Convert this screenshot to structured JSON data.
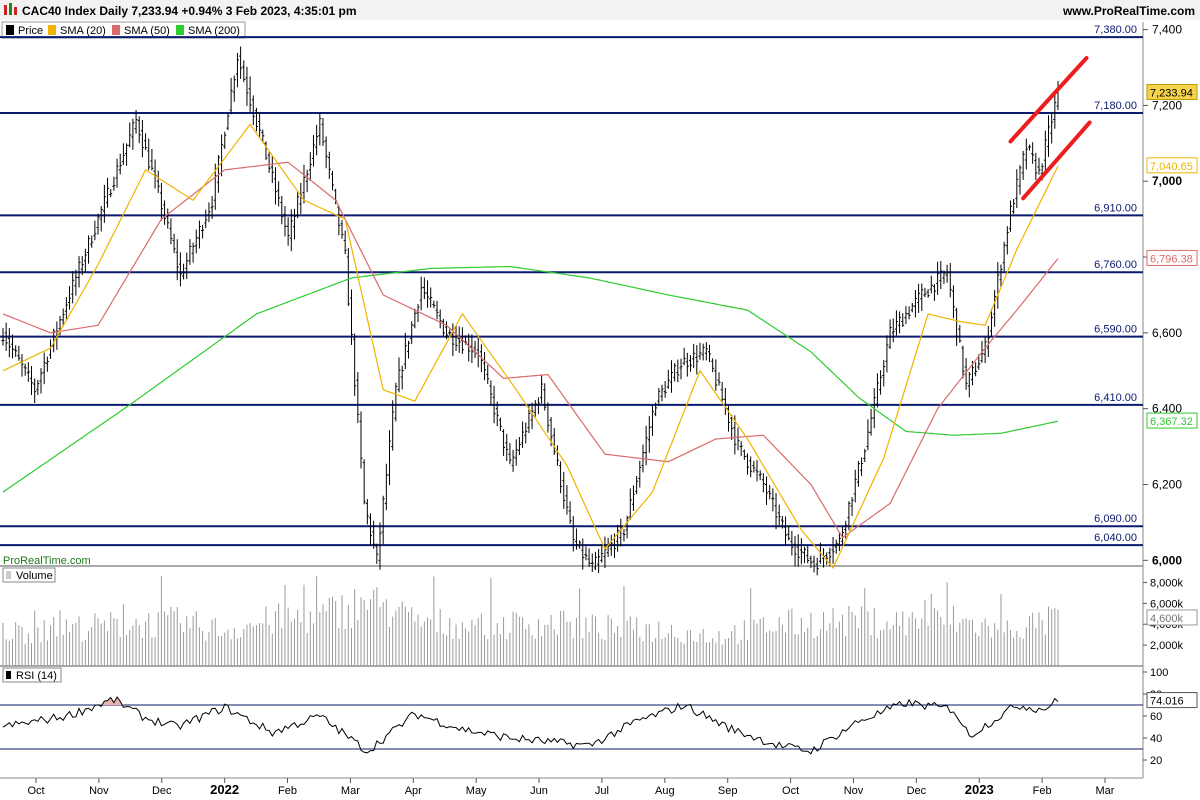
{
  "header": {
    "title": "CAC40 Index Daily 7,233.94 +0.94% 3 Feb 2023, 4:35:01 pm",
    "site": "www.ProRealTime.com"
  },
  "watermark": "ProRealTime.com",
  "legend": [
    {
      "label": "Price",
      "color": "#000000"
    },
    {
      "label": "SMA (20)",
      "color": "#f0b400"
    },
    {
      "label": "SMA (50)",
      "color": "#d96b6b"
    },
    {
      "label": "SMA (200)",
      "color": "#2ecc2e"
    }
  ],
  "volume_label": "Volume",
  "rsi_label": "RSI (14)",
  "colors": {
    "sma20": "#f0b400",
    "sma50": "#d96b6b",
    "sma200": "#2ecc2e",
    "levels": "#0a1a6e",
    "trend": "#ee1c1c",
    "volume": "#9a9a9a"
  },
  "chart_data": {
    "type": "line",
    "price_axis": {
      "ticks": [
        6000,
        6200,
        6400,
        6600,
        6800,
        7000,
        7200,
        7400
      ],
      "labels": [
        "6,000",
        "6,200",
        "6,400",
        "6,600",
        "6,800",
        "7,000",
        "7,200",
        "7,400"
      ],
      "ylim": [
        5985,
        7420
      ]
    },
    "last_price": "7,233.94",
    "sma_values": [
      {
        "name": "SMA (20)",
        "value": "7,040.65"
      },
      {
        "name": "SMA (50)",
        "value": "6,796.38"
      },
      {
        "name": "SMA (200)",
        "value": "6,367.32"
      }
    ],
    "levels": [
      7380,
      7180,
      6910,
      6760,
      6590,
      6410,
      6090,
      6040
    ],
    "level_labels": [
      "7,380.00",
      "7,180.00",
      "6,910.00",
      "6,760.00",
      "6,590.00",
      "6,410.00",
      "6,090.00",
      "6,040.00"
    ],
    "x_axis": [
      "Oct",
      "Nov",
      "Dec",
      "2022",
      "Feb",
      "Mar",
      "Apr",
      "May",
      "Jun",
      "Jul",
      "Aug",
      "Sep",
      "Oct",
      "Nov",
      "Dec",
      "2023",
      "Feb",
      "Mar"
    ],
    "volume_axis": {
      "ticks": [
        2000,
        4000,
        6000,
        8000
      ],
      "labels": [
        "2,000k",
        "4,000k",
        "6,000k",
        "8,000k"
      ],
      "last": "4,600k"
    },
    "rsi_axis": {
      "ticks": [
        20,
        40,
        60,
        80,
        100
      ],
      "labels": [
        "20",
        "40",
        "60",
        "80",
        "100"
      ],
      "last": "74.016",
      "bands": [
        70,
        30
      ]
    },
    "sma200_keypoints": [
      {
        "i": 0,
        "v": 6180
      },
      {
        "i": 40,
        "v": 6410
      },
      {
        "i": 80,
        "v": 6650
      },
      {
        "i": 110,
        "v": 6745
      },
      {
        "i": 135,
        "v": 6770
      },
      {
        "i": 160,
        "v": 6775
      },
      {
        "i": 185,
        "v": 6745
      },
      {
        "i": 210,
        "v": 6700
      },
      {
        "i": 235,
        "v": 6660
      },
      {
        "i": 255,
        "v": 6550
      },
      {
        "i": 270,
        "v": 6430
      },
      {
        "i": 285,
        "v": 6340
      },
      {
        "i": 300,
        "v": 6330
      },
      {
        "i": 315,
        "v": 6335
      },
      {
        "i": 333,
        "v": 6367
      }
    ],
    "price_keypoints": [
      {
        "i": 0,
        "v": 6600
      },
      {
        "i": 10,
        "v": 6450
      },
      {
        "i": 20,
        "v": 6680
      },
      {
        "i": 30,
        "v": 6900
      },
      {
        "i": 42,
        "v": 7160
      },
      {
        "i": 48,
        "v": 7000
      },
      {
        "i": 56,
        "v": 6750
      },
      {
        "i": 66,
        "v": 6950
      },
      {
        "i": 74,
        "v": 7330
      },
      {
        "i": 82,
        "v": 7100
      },
      {
        "i": 90,
        "v": 6850
      },
      {
        "i": 100,
        "v": 7150
      },
      {
        "i": 108,
        "v": 6800
      },
      {
        "i": 114,
        "v": 6150
      },
      {
        "i": 118,
        "v": 6000
      },
      {
        "i": 124,
        "v": 6450
      },
      {
        "i": 132,
        "v": 6720
      },
      {
        "i": 140,
        "v": 6600
      },
      {
        "i": 150,
        "v": 6550
      },
      {
        "i": 160,
        "v": 6250
      },
      {
        "i": 170,
        "v": 6450
      },
      {
        "i": 180,
        "v": 6050
      },
      {
        "i": 186,
        "v": 5980
      },
      {
        "i": 196,
        "v": 6080
      },
      {
        "i": 206,
        "v": 6420
      },
      {
        "i": 214,
        "v": 6520
      },
      {
        "i": 222,
        "v": 6550
      },
      {
        "i": 232,
        "v": 6300
      },
      {
        "i": 240,
        "v": 6200
      },
      {
        "i": 248,
        "v": 6050
      },
      {
        "i": 256,
        "v": 5990
      },
      {
        "i": 264,
        "v": 6050
      },
      {
        "i": 272,
        "v": 6300
      },
      {
        "i": 280,
        "v": 6600
      },
      {
        "i": 290,
        "v": 6700
      },
      {
        "i": 298,
        "v": 6760
      },
      {
        "i": 304,
        "v": 6460
      },
      {
        "i": 310,
        "v": 6560
      },
      {
        "i": 318,
        "v": 6920
      },
      {
        "i": 323,
        "v": 7090
      },
      {
        "i": 327,
        "v": 7020
      },
      {
        "i": 333,
        "v": 7234
      }
    ],
    "rsi_keypoints": [
      {
        "i": 0,
        "v": 50
      },
      {
        "i": 20,
        "v": 60
      },
      {
        "i": 35,
        "v": 75
      },
      {
        "i": 45,
        "v": 58
      },
      {
        "i": 55,
        "v": 50
      },
      {
        "i": 70,
        "v": 68
      },
      {
        "i": 85,
        "v": 45
      },
      {
        "i": 100,
        "v": 60
      },
      {
        "i": 115,
        "v": 28
      },
      {
        "i": 130,
        "v": 62
      },
      {
        "i": 145,
        "v": 48
      },
      {
        "i": 160,
        "v": 40
      },
      {
        "i": 185,
        "v": 33
      },
      {
        "i": 200,
        "v": 55
      },
      {
        "i": 215,
        "v": 70
      },
      {
        "i": 230,
        "v": 48
      },
      {
        "i": 245,
        "v": 33
      },
      {
        "i": 255,
        "v": 28
      },
      {
        "i": 270,
        "v": 55
      },
      {
        "i": 285,
        "v": 72
      },
      {
        "i": 300,
        "v": 66
      },
      {
        "i": 305,
        "v": 42
      },
      {
        "i": 320,
        "v": 70
      },
      {
        "i": 328,
        "v": 66
      },
      {
        "i": 333,
        "v": 74
      }
    ],
    "sma20_keypoints": [
      {
        "i": 0,
        "v": 6500
      },
      {
        "i": 15,
        "v": 6560
      },
      {
        "i": 30,
        "v": 6780
      },
      {
        "i": 45,
        "v": 7030
      },
      {
        "i": 60,
        "v": 6950
      },
      {
        "i": 78,
        "v": 7150
      },
      {
        "i": 95,
        "v": 6950
      },
      {
        "i": 108,
        "v": 6900
      },
      {
        "i": 120,
        "v": 6450
      },
      {
        "i": 130,
        "v": 6420
      },
      {
        "i": 145,
        "v": 6650
      },
      {
        "i": 162,
        "v": 6450
      },
      {
        "i": 178,
        "v": 6250
      },
      {
        "i": 190,
        "v": 6030
      },
      {
        "i": 205,
        "v": 6180
      },
      {
        "i": 220,
        "v": 6500
      },
      {
        "i": 235,
        "v": 6320
      },
      {
        "i": 252,
        "v": 6080
      },
      {
        "i": 262,
        "v": 5980
      },
      {
        "i": 278,
        "v": 6270
      },
      {
        "i": 292,
        "v": 6650
      },
      {
        "i": 302,
        "v": 6630
      },
      {
        "i": 310,
        "v": 6620
      },
      {
        "i": 320,
        "v": 6820
      },
      {
        "i": 333,
        "v": 7040
      }
    ],
    "sma50_keypoints": [
      {
        "i": 0,
        "v": 6650
      },
      {
        "i": 15,
        "v": 6600
      },
      {
        "i": 30,
        "v": 6620
      },
      {
        "i": 50,
        "v": 6900
      },
      {
        "i": 70,
        "v": 7030
      },
      {
        "i": 90,
        "v": 7050
      },
      {
        "i": 105,
        "v": 6950
      },
      {
        "i": 120,
        "v": 6700
      },
      {
        "i": 140,
        "v": 6620
      },
      {
        "i": 158,
        "v": 6480
      },
      {
        "i": 172,
        "v": 6490
      },
      {
        "i": 190,
        "v": 6280
      },
      {
        "i": 210,
        "v": 6260
      },
      {
        "i": 225,
        "v": 6320
      },
      {
        "i": 240,
        "v": 6330
      },
      {
        "i": 255,
        "v": 6200
      },
      {
        "i": 265,
        "v": 6060
      },
      {
        "i": 280,
        "v": 6150
      },
      {
        "i": 295,
        "v": 6400
      },
      {
        "i": 310,
        "v": 6560
      },
      {
        "i": 320,
        "v": 6660
      },
      {
        "i": 333,
        "v": 6796
      }
    ],
    "volume_keypoints": [
      {
        "i": 0,
        "v": 3400
      },
      {
        "i": 20,
        "v": 3800
      },
      {
        "i": 40,
        "v": 4200
      },
      {
        "i": 55,
        "v": 4400
      },
      {
        "i": 70,
        "v": 3600
      },
      {
        "i": 85,
        "v": 4600
      },
      {
        "i": 100,
        "v": 5000
      },
      {
        "i": 115,
        "v": 6500
      },
      {
        "i": 130,
        "v": 4500
      },
      {
        "i": 150,
        "v": 4000
      },
      {
        "i": 170,
        "v": 4300
      },
      {
        "i": 190,
        "v": 3800
      },
      {
        "i": 210,
        "v": 3600
      },
      {
        "i": 225,
        "v": 3000
      },
      {
        "i": 245,
        "v": 4200
      },
      {
        "i": 262,
        "v": 4500
      },
      {
        "i": 280,
        "v": 4400
      },
      {
        "i": 300,
        "v": 4600
      },
      {
        "i": 315,
        "v": 3600
      },
      {
        "i": 333,
        "v": 4600
      }
    ]
  }
}
